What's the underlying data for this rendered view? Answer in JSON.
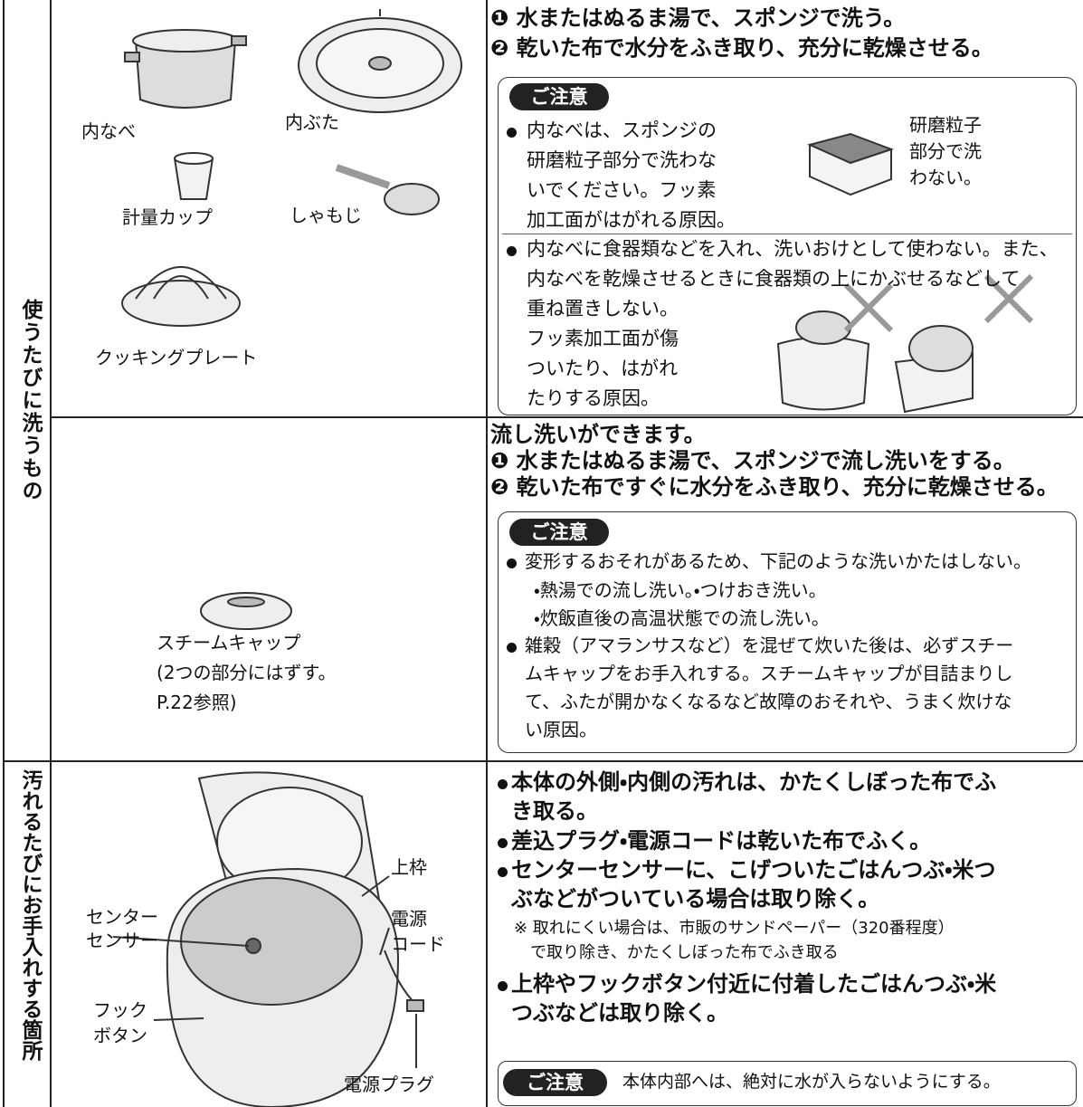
{
  "section_labels": [
    "使うたびに洗うもの",
    "汚れるたびにお手入れする箇所"
  ],
  "row1": {
    "parts": {
      "inner_pot": "内なべ",
      "inner_lid": "内ぶた",
      "measuring_cup": "計量カップ",
      "rice_paddle": "しゃもじ",
      "cooking_plate": "クッキングプレート"
    },
    "steps": [
      "❶ 水またはぬるま湯で、スポンジで洗う。",
      "❷ 乾いた布で水分をふき取り、充分に乾燥させる。"
    ],
    "caution": {
      "title": "ご注意",
      "item1": [
        "内なべは、スポンジの",
        "研磨粒子部分で洗わな",
        "いでください。フッ素",
        "加工面がはがれる原因。"
      ],
      "sponge_label": [
        "研磨粒子",
        "部分で洗",
        "わない。"
      ],
      "item2": [
        "内なべに食器類などを入れ、洗いおけとして使わない。また、",
        "内なべを乾燥させるときに食器類の上にかぶせるなどして",
        "重ね置きしない。"
      ],
      "item2_reason": [
        "フッ素加工面が傷",
        "ついたり、はがれ",
        "たりする原因。"
      ]
    }
  },
  "row2": {
    "part": [
      "スチームキャップ",
      "(2つの部分にはずす。",
      "P.22参照)"
    ],
    "steps": [
      "流し洗いができます。",
      "❶ 水またはぬるま湯で、スポンジで流し洗いをする。",
      "❷ 乾いた布ですぐに水分をふき取り、充分に乾燥させる。"
    ],
    "caution": {
      "title": "ご注意",
      "item1": [
        "変形するおそれがあるため、下記のような洗いかたはしない。"
      ],
      "sub1": [
        "・熱湯での流し洗い。・つけおき洗い。"
      ],
      "sub2": [
        "・炊飯直後の高温状態での流し洗い。"
      ],
      "item2": [
        "雑穀（アマランサスなど）を混ぜて炊いた後は、必ずスチー",
        "ムキャップをお手入れする。スチームキャップが目詰まりし",
        "て、ふたが開かなくなるなど故障のおそれや、うまく炊けな",
        "い原因。"
      ]
    }
  },
  "row3": {
    "labels": {
      "center_sensor": [
        "センター",
        "センサー"
      ],
      "upper_frame": [
        "上枠"
      ],
      "power_cord": [
        "電源",
        "コード"
      ],
      "hook_button": [
        "フック",
        "ボタン"
      ],
      "power_plug": [
        "電源プラグ"
      ]
    },
    "bullet1": [
      "本体の外側・内側の汚れは、かたくしぼった布でふ",
      "き取る。"
    ],
    "bullet2": [
      "差込プラグ・電源コードは乾いた布でふく。"
    ],
    "bullet3": [
      "センターセンサーに、こげついたごはんつぶ・米つ",
      "ぶなどがついている場合は取り除く。"
    ],
    "note": [
      "※ 取れにくい場合は、市販のサンドペーパー（320番程度）",
      "　で取り除き、かたくしぼった布でふき取る"
    ],
    "bullet4": [
      "上枠やフックボタン付近に付着したごはんつぶ・米",
      "つぶなどは取り除く。"
    ],
    "caution": {
      "title": "ご注意",
      "text": "本体内部へは、絶対に水が入らないようにする。"
    }
  }
}
